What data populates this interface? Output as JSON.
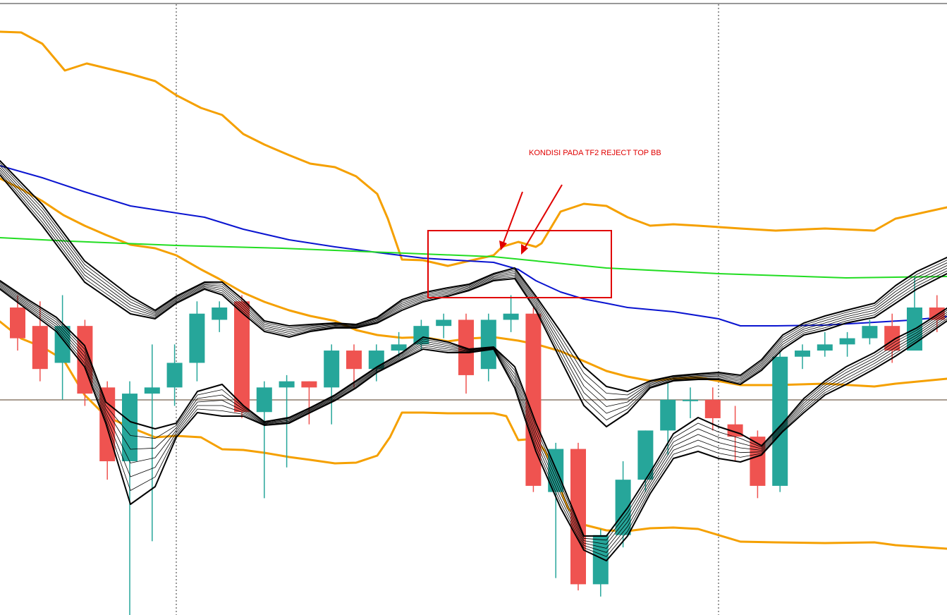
{
  "chart_data": {
    "type": "candlestick",
    "description_free": true,
    "title": "",
    "xlabel": "",
    "ylabel": "",
    "grid": false,
    "legend": "none",
    "ylim": [
      0,
      872
    ],
    "colors": {
      "background": "#ffffff",
      "bull": "#26a69a",
      "bear": "#ef5350",
      "bollinger": "#f5a000",
      "ma_blue": "#0a14d0",
      "ma_green": "#22dd22",
      "ribbon": "#000000",
      "price_line": "#8c7b6b",
      "vline": "#333333",
      "annotation": "#e00000"
    },
    "candles": [
      {
        "x": 0,
        "open": 50,
        "close": 45,
        "high": 52,
        "low": 43
      },
      {
        "x": 1,
        "open": 47,
        "close": 40,
        "high": 51,
        "low": 38
      },
      {
        "x": 2,
        "open": 41,
        "close": 47,
        "high": 52,
        "low": 35
      },
      {
        "x": 3,
        "open": 47,
        "close": 36,
        "high": 48,
        "low": 34
      },
      {
        "x": 4,
        "open": 37,
        "close": 25,
        "high": 38,
        "low": 22
      },
      {
        "x": 5,
        "open": 25,
        "close": 36,
        "high": 38,
        "low": 0
      },
      {
        "x": 6,
        "open": 36,
        "close": 37,
        "high": 44,
        "low": 12
      },
      {
        "x": 7,
        "open": 37,
        "close": 41,
        "high": 44,
        "low": 34
      },
      {
        "x": 8,
        "open": 41,
        "close": 49,
        "high": 51,
        "low": 38
      },
      {
        "x": 9,
        "open": 48,
        "close": 50,
        "high": 51,
        "low": 46
      },
      {
        "x": 10,
        "open": 51,
        "close": 33,
        "high": 52,
        "low": 32
      },
      {
        "x": 11,
        "open": 33,
        "close": 37,
        "high": 38,
        "low": 19
      },
      {
        "x": 12,
        "open": 37,
        "close": 38,
        "high": 39,
        "low": 24
      },
      {
        "x": 13,
        "open": 38,
        "close": 37,
        "high": 38,
        "low": 31
      },
      {
        "x": 14,
        "open": 37,
        "close": 43,
        "high": 44,
        "low": 31
      },
      {
        "x": 15,
        "open": 43,
        "close": 40,
        "high": 44,
        "low": 37
      },
      {
        "x": 16,
        "open": 40,
        "close": 43,
        "high": 44,
        "low": 38
      },
      {
        "x": 17,
        "open": 43,
        "close": 44,
        "high": 46,
        "low": 42
      },
      {
        "x": 18,
        "open": 44,
        "close": 47,
        "high": 48,
        "low": 43
      },
      {
        "x": 19,
        "open": 47,
        "close": 48,
        "high": 49,
        "low": 45
      },
      {
        "x": 20,
        "open": 48,
        "close": 39,
        "high": 49,
        "low": 36
      },
      {
        "x": 21,
        "open": 40,
        "close": 48,
        "high": 49,
        "low": 38
      },
      {
        "x": 22,
        "open": 48,
        "close": 49,
        "high": 52,
        "low": 46
      },
      {
        "x": 23,
        "open": 49,
        "close": 21,
        "high": 50,
        "low": 20
      },
      {
        "x": 24,
        "open": 20,
        "close": 27,
        "high": 28,
        "low": 6
      },
      {
        "x": 25,
        "open": 27,
        "close": 5,
        "high": 28,
        "low": 4
      },
      {
        "x": 26,
        "open": 5,
        "close": 13,
        "high": 14,
        "low": 3
      },
      {
        "x": 27,
        "open": 13,
        "close": 22,
        "high": 25,
        "low": 11
      },
      {
        "x": 28,
        "open": 22,
        "close": 30,
        "high": 30,
        "low": 20
      },
      {
        "x": 29,
        "open": 30,
        "close": 35,
        "high": 38,
        "low": 26
      },
      {
        "x": 30,
        "open": 35,
        "close": 35,
        "high": 37,
        "low": 32
      },
      {
        "x": 31,
        "open": 35,
        "close": 32,
        "high": 37,
        "low": 30
      },
      {
        "x": 32,
        "open": 31,
        "close": 29,
        "high": 34,
        "low": 25
      },
      {
        "x": 33,
        "open": 29,
        "close": 21,
        "high": 30,
        "low": 19
      },
      {
        "x": 34,
        "open": 21,
        "close": 42,
        "high": 43,
        "low": 20
      },
      {
        "x": 35,
        "open": 42,
        "close": 43,
        "high": 44,
        "low": 40
      },
      {
        "x": 36,
        "open": 43,
        "close": 44,
        "high": 46,
        "low": 42
      },
      {
        "x": 37,
        "open": 44,
        "close": 45,
        "high": 46,
        "low": 42
      },
      {
        "x": 38,
        "open": 45,
        "close": 47,
        "high": 48,
        "low": 44
      },
      {
        "x": 39,
        "open": 47,
        "close": 43,
        "high": 49,
        "low": 41
      },
      {
        "x": 40,
        "open": 43,
        "close": 50,
        "high": 55,
        "low": 44
      },
      {
        "x": 41,
        "open": 50,
        "close": 48,
        "high": 52,
        "low": 46
      },
      {
        "x": 42,
        "open": 48,
        "close": 51,
        "high": 53,
        "low": 47
      }
    ],
    "annotations": [
      {
        "text": "KONDISI PADA TF2 REJECT TOP BB"
      }
    ]
  }
}
